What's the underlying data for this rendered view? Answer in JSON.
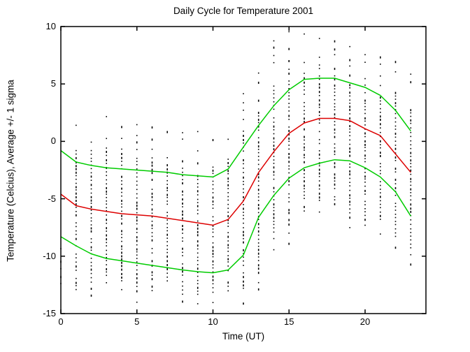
{
  "figure": {
    "background": "#ffffff",
    "axis_color": "#000000",
    "text_color": "#000000"
  },
  "chart_data": {
    "type": "line",
    "title": "Daily Cycle for Temperature 2001",
    "xlabel": "Time (UT)",
    "ylabel": "Temperature (Celcius), Average +/- 1 sigma",
    "xlim": [
      0,
      24
    ],
    "ylim": [
      -15,
      10
    ],
    "xticks": [
      0,
      5,
      10,
      15,
      20
    ],
    "yticks": [
      10,
      5,
      0,
      -5,
      -10,
      -15
    ],
    "grid": false,
    "legend": "none",
    "x": [
      0,
      1,
      2,
      3,
      4,
      5,
      6,
      7,
      8,
      9,
      10,
      11,
      12,
      13,
      14,
      15,
      16,
      17,
      18,
      19,
      20,
      21,
      22,
      23
    ],
    "series": [
      {
        "name": "average",
        "color": "#dd0000",
        "values": [
          -4.6,
          -5.6,
          -5.9,
          -6.1,
          -6.3,
          -6.4,
          -6.5,
          -6.7,
          -6.9,
          -7.1,
          -7.3,
          -6.8,
          -5.2,
          -2.7,
          -0.9,
          0.7,
          1.6,
          2.0,
          2.0,
          1.8,
          1.1,
          0.5,
          -1.1,
          -2.7
        ]
      },
      {
        "name": "average-plus-1-sigma",
        "color": "#00cc00",
        "values": [
          -0.8,
          -1.8,
          -2.1,
          -2.3,
          -2.4,
          -2.5,
          -2.6,
          -2.7,
          -2.9,
          -3.0,
          -3.1,
          -2.4,
          -0.5,
          1.4,
          3.1,
          4.5,
          5.4,
          5.5,
          5.5,
          5.1,
          4.7,
          4.0,
          2.7,
          0.9
        ]
      },
      {
        "name": "average-minus-1-sigma",
        "color": "#00cc00",
        "values": [
          -8.3,
          -9.1,
          -9.8,
          -10.2,
          -10.4,
          -10.6,
          -10.8,
          -11.0,
          -11.2,
          -11.35,
          -11.45,
          -11.2,
          -9.9,
          -6.6,
          -4.7,
          -3.2,
          -2.3,
          -1.9,
          -1.6,
          -1.7,
          -2.3,
          -3.1,
          -4.4,
          -6.5
        ]
      }
    ],
    "scatter_columns": {
      "marker": "black-dot",
      "color": "#000000",
      "description": "individual observations plotted as vertical dotted columns at each hour",
      "hours": [
        0,
        1,
        2,
        3,
        4,
        5,
        6,
        7,
        8,
        9,
        10,
        11,
        12,
        13,
        14,
        15,
        16,
        17,
        18,
        19,
        20,
        21,
        22,
        23
      ],
      "top": [
        -9.3,
        2.1,
        1.8,
        2.2,
        2.1,
        1.5,
        1.3,
        0.9,
        0.8,
        0.9,
        0.2,
        1.3,
        4.2,
        6.0,
        8.8,
        9.6,
        9.4,
        9.6,
        8.8,
        8.3,
        7.6,
        7.4,
        7.0,
        5.9
      ],
      "bottom": [
        -14.0,
        -14.2,
        -13.4,
        -14.0,
        -13.4,
        -14.2,
        -14.6,
        -13.8,
        -14.6,
        -14.65,
        -14.45,
        -14.75,
        -14.65,
        -12.9,
        -10.4,
        -8.9,
        -7.5,
        -6.9,
        -7.3,
        -7.9,
        -8.0,
        -8.9,
        -9.7,
        -10.8
      ],
      "sparse_hours": [
        0
      ]
    }
  }
}
